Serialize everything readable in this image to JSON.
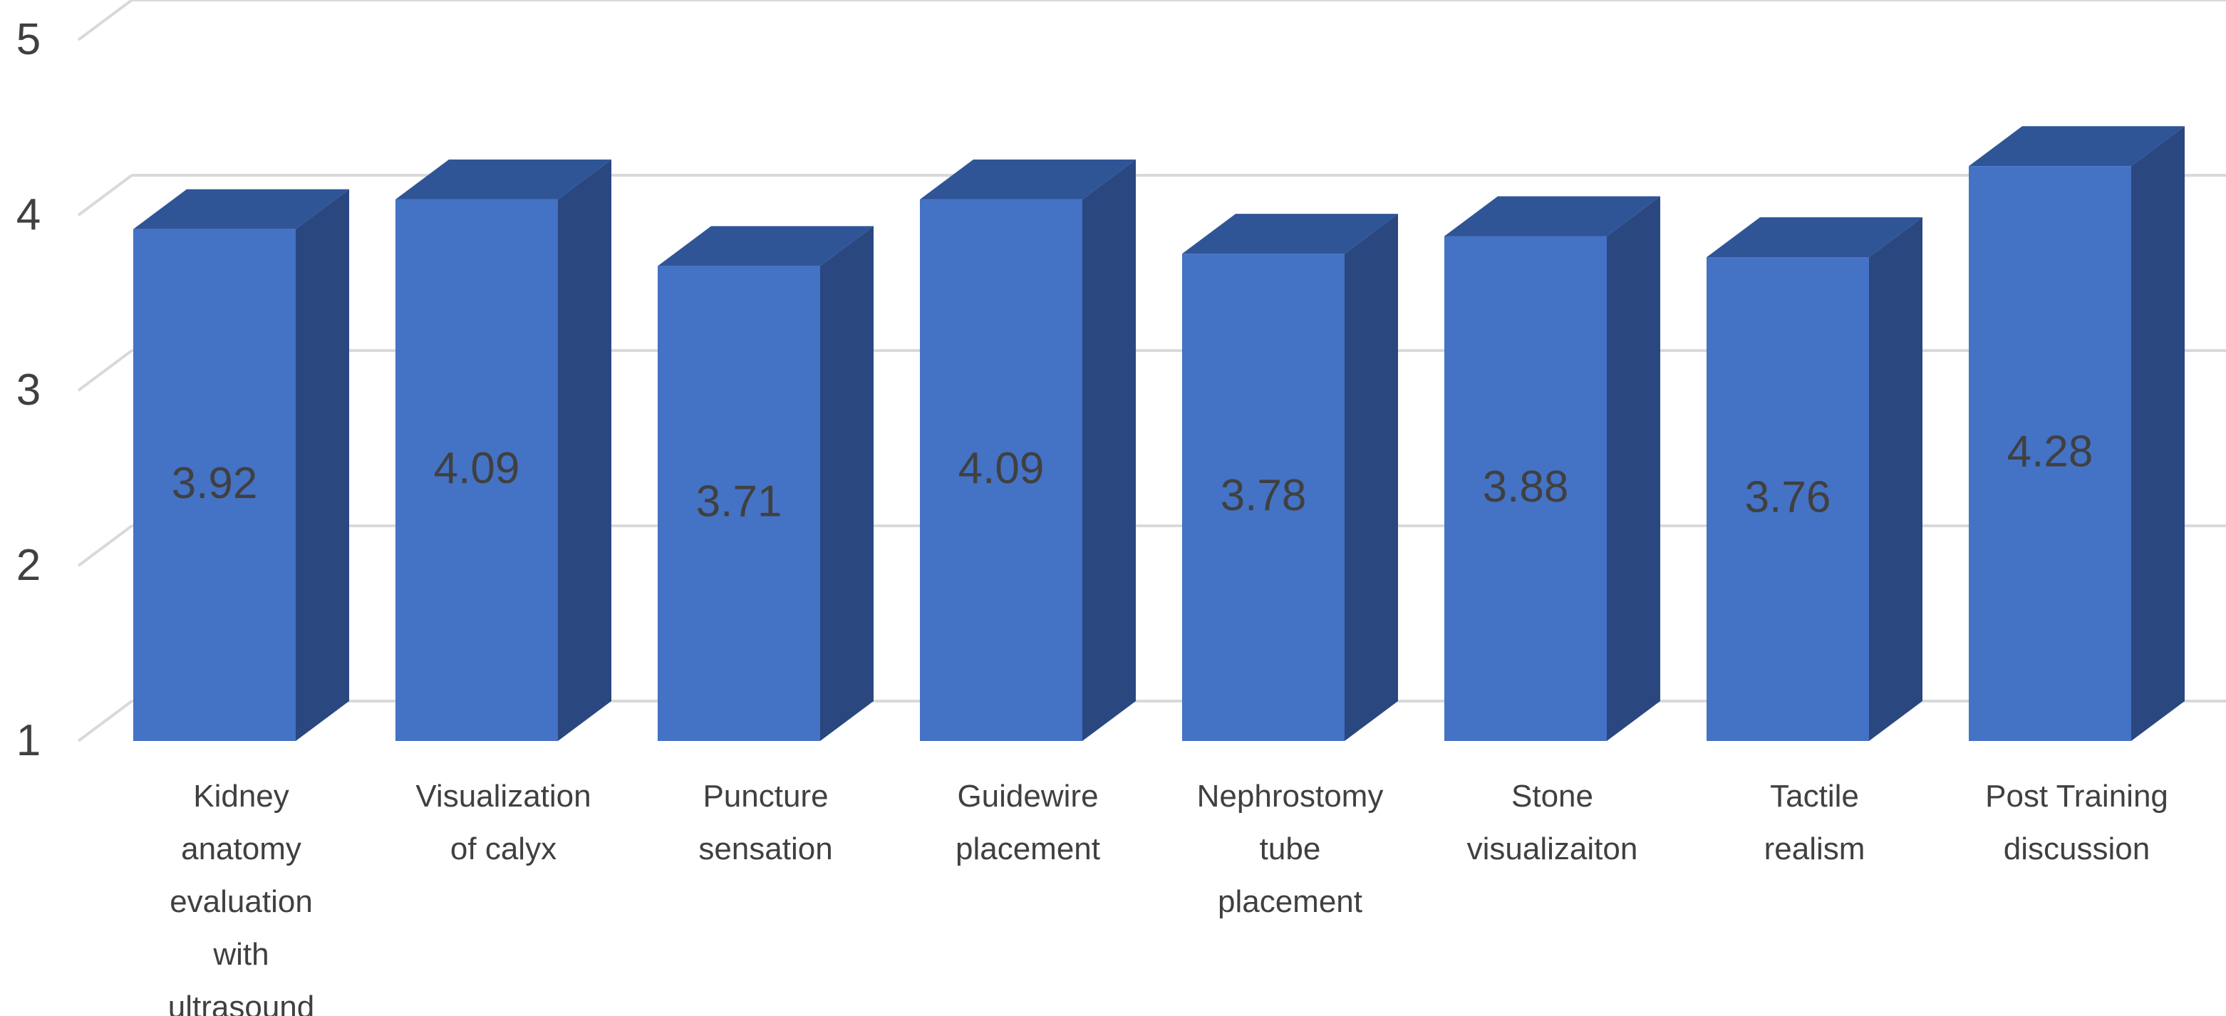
{
  "chart_data": {
    "type": "bar",
    "style": "3d-column",
    "title": "",
    "xlabel": "",
    "ylabel": "",
    "ylim": [
      1,
      5
    ],
    "yticks": [
      1,
      2,
      3,
      4,
      5
    ],
    "grid": true,
    "legend": "none",
    "categories": [
      [
        "Kidney",
        "anatomy",
        "evaluation",
        "with",
        "ultrasound"
      ],
      [
        "Visualization",
        "of calyx"
      ],
      [
        "Puncture",
        "sensation"
      ],
      [
        "Guidewire",
        "placement"
      ],
      [
        "Nephrostomy",
        "tube",
        "placement"
      ],
      [
        "Stone",
        "visualizaiton"
      ],
      [
        "Tactile",
        "realism"
      ],
      [
        "Post Training",
        "discussion"
      ]
    ],
    "values": [
      3.92,
      4.09,
      3.71,
      4.09,
      3.78,
      3.88,
      3.76,
      4.28
    ],
    "data_labels": [
      "3.92",
      "4.09",
      "3.71",
      "4.09",
      "3.78",
      "3.88",
      "3.76",
      "4.28"
    ],
    "colors": {
      "front": "#4472C4",
      "side": "#2A4780",
      "top": "#2F5597",
      "grid": "#D9D9D9",
      "text": "#404040"
    }
  }
}
